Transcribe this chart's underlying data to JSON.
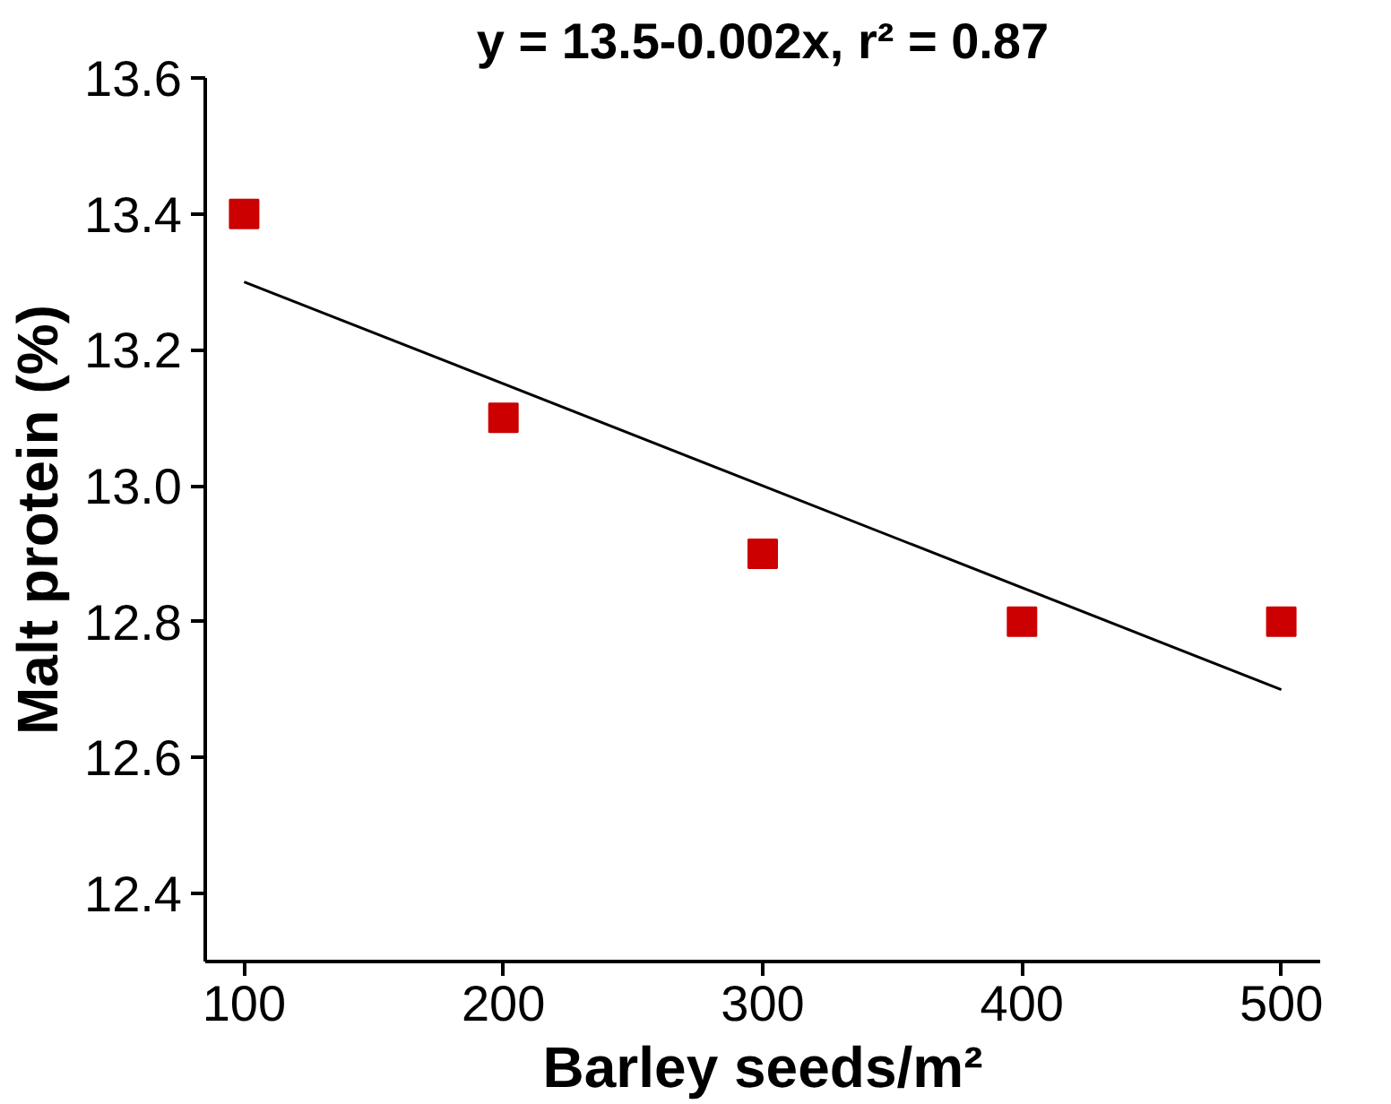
{
  "chart_data": {
    "type": "scatter",
    "title": "y = 13.5-0.002x, r² = 0.87",
    "xlabel": "Barley seeds/m²",
    "ylabel": "Malt protein (%)",
    "x": [
      100,
      200,
      300,
      400,
      500
    ],
    "series": [
      {
        "color": "#cc0000",
        "marker": "square",
        "values": [
          13.4,
          13.1,
          12.9,
          12.8,
          12.8
        ]
      },
      {
        "type": "line",
        "color": "#000000",
        "x": [
          100,
          500
        ],
        "values": [
          13.3,
          12.7
        ],
        "line_style": "solid"
      }
    ],
    "xlim": [
      85,
      515
    ],
    "xticks": [
      100,
      200,
      300,
      400,
      500
    ],
    "ylim": [
      12.3,
      13.6
    ],
    "yticks": [
      {
        "value": 12.4,
        "label": "12.4"
      },
      {
        "value": 12.6,
        "label": "12.6"
      },
      {
        "value": 12.8,
        "label": "12.8"
      },
      {
        "value": 13.0,
        "label": "13.0"
      },
      {
        "value": 13.2,
        "label": "13.2"
      },
      {
        "value": 13.4,
        "label": "13.4"
      },
      {
        "value": 13.6,
        "label": "13.6"
      }
    ],
    "grid": false
  }
}
